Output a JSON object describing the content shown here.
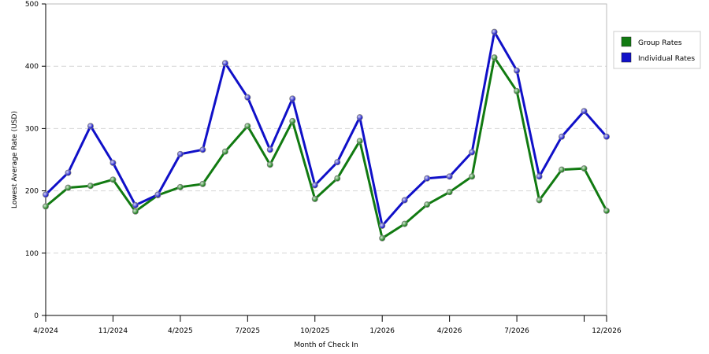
{
  "colors": {
    "group": "#117a11",
    "individual": "#1010c8"
  },
  "chart_data": {
    "type": "line",
    "title": "",
    "xlabel": "Month of Check In",
    "ylabel": "Lowest Average Rate (USD)",
    "ylim": [
      0,
      500
    ],
    "y_ticks": [
      "0",
      "100",
      "200",
      "300",
      "400",
      "500"
    ],
    "x_ticks": [
      {
        "index": 0,
        "label": "4/2024"
      },
      {
        "index": 3,
        "label": "11/2024"
      },
      {
        "index": 6,
        "label": "4/2025"
      },
      {
        "index": 9,
        "label": "7/2025"
      },
      {
        "index": 12,
        "label": "10/2025"
      },
      {
        "index": 15,
        "label": "1/2026"
      },
      {
        "index": 18,
        "label": "4/2026"
      },
      {
        "index": 21,
        "label": "7/2026"
      },
      {
        "index": 24,
        "label": ""
      },
      {
        "index": 25,
        "label": "12/2026"
      }
    ],
    "grid": true,
    "legend_position": "right",
    "series": [
      {
        "name": "Group Rates",
        "color": "#117a11",
        "values": [
          175,
          205,
          208,
          218,
          167,
          193,
          206,
          211,
          263,
          304,
          242,
          312,
          187,
          220,
          280,
          124,
          147,
          178,
          198,
          223,
          414,
          360,
          185,
          234,
          236,
          168
        ]
      },
      {
        "name": "Individual Rates",
        "color": "#1010c8",
        "values": [
          194,
          229,
          304,
          245,
          177,
          194,
          259,
          266,
          405,
          350,
          266,
          348,
          209,
          246,
          318,
          144,
          185,
          220,
          223,
          262,
          455,
          393,
          223,
          287,
          328,
          287
        ]
      }
    ]
  }
}
